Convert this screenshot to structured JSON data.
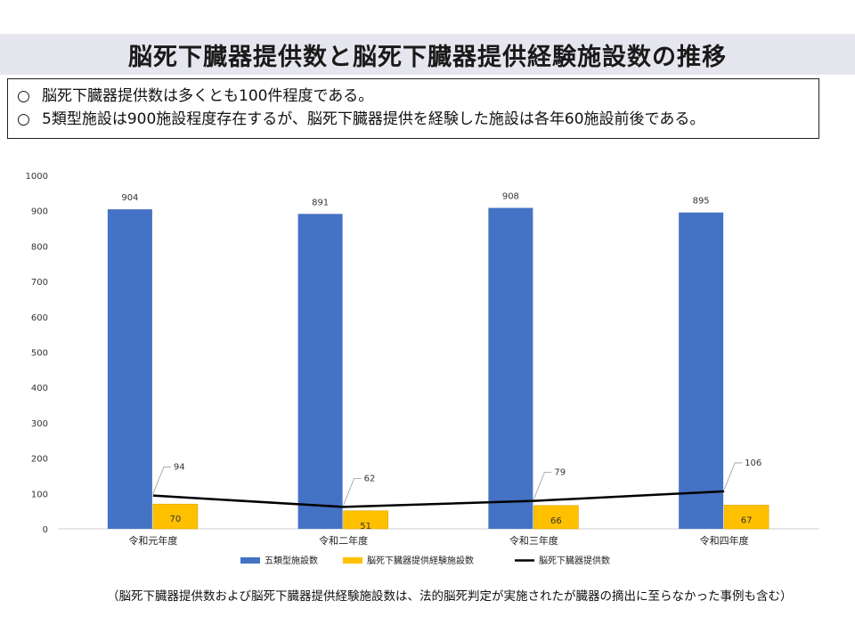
{
  "title": "脳死下臓器提供数と脳死下臓器提供経験施設数の推移",
  "summary": {
    "marker": "○",
    "lines": [
      "脳死下臓器提供数は多くとも100件程度である。",
      "5類型施設は900施設程度存在するが、脳死下臓器提供を経験した施設は各年60施設前後である。"
    ]
  },
  "chart_data": {
    "type": "bar",
    "categories": [
      "令和元年度",
      "令和二年度",
      "令和三年度",
      "令和四年度"
    ],
    "ylim": [
      0,
      1000
    ],
    "yticks": [
      0,
      100,
      200,
      300,
      400,
      500,
      600,
      700,
      800,
      900,
      1000
    ],
    "grid": false,
    "legend": "bottom",
    "series": [
      {
        "name": "五類型施設数",
        "kind": "bar",
        "color": "#4472c4",
        "values": [
          904,
          891,
          908,
          895
        ]
      },
      {
        "name": "脳死下臓器提供経験施設数",
        "kind": "bar",
        "color": "#ffc000",
        "values": [
          70,
          51,
          66,
          67
        ]
      },
      {
        "name": "脳死下臓器提供数",
        "kind": "line",
        "color": "#000000",
        "values": [
          94,
          62,
          79,
          106
        ]
      }
    ]
  },
  "footnote": "（脳死下臓器提供数および脳死下臓器提供経験施設数は、法的脳死判定が実施されたが臓器の摘出に至らなかった事例も含む）"
}
